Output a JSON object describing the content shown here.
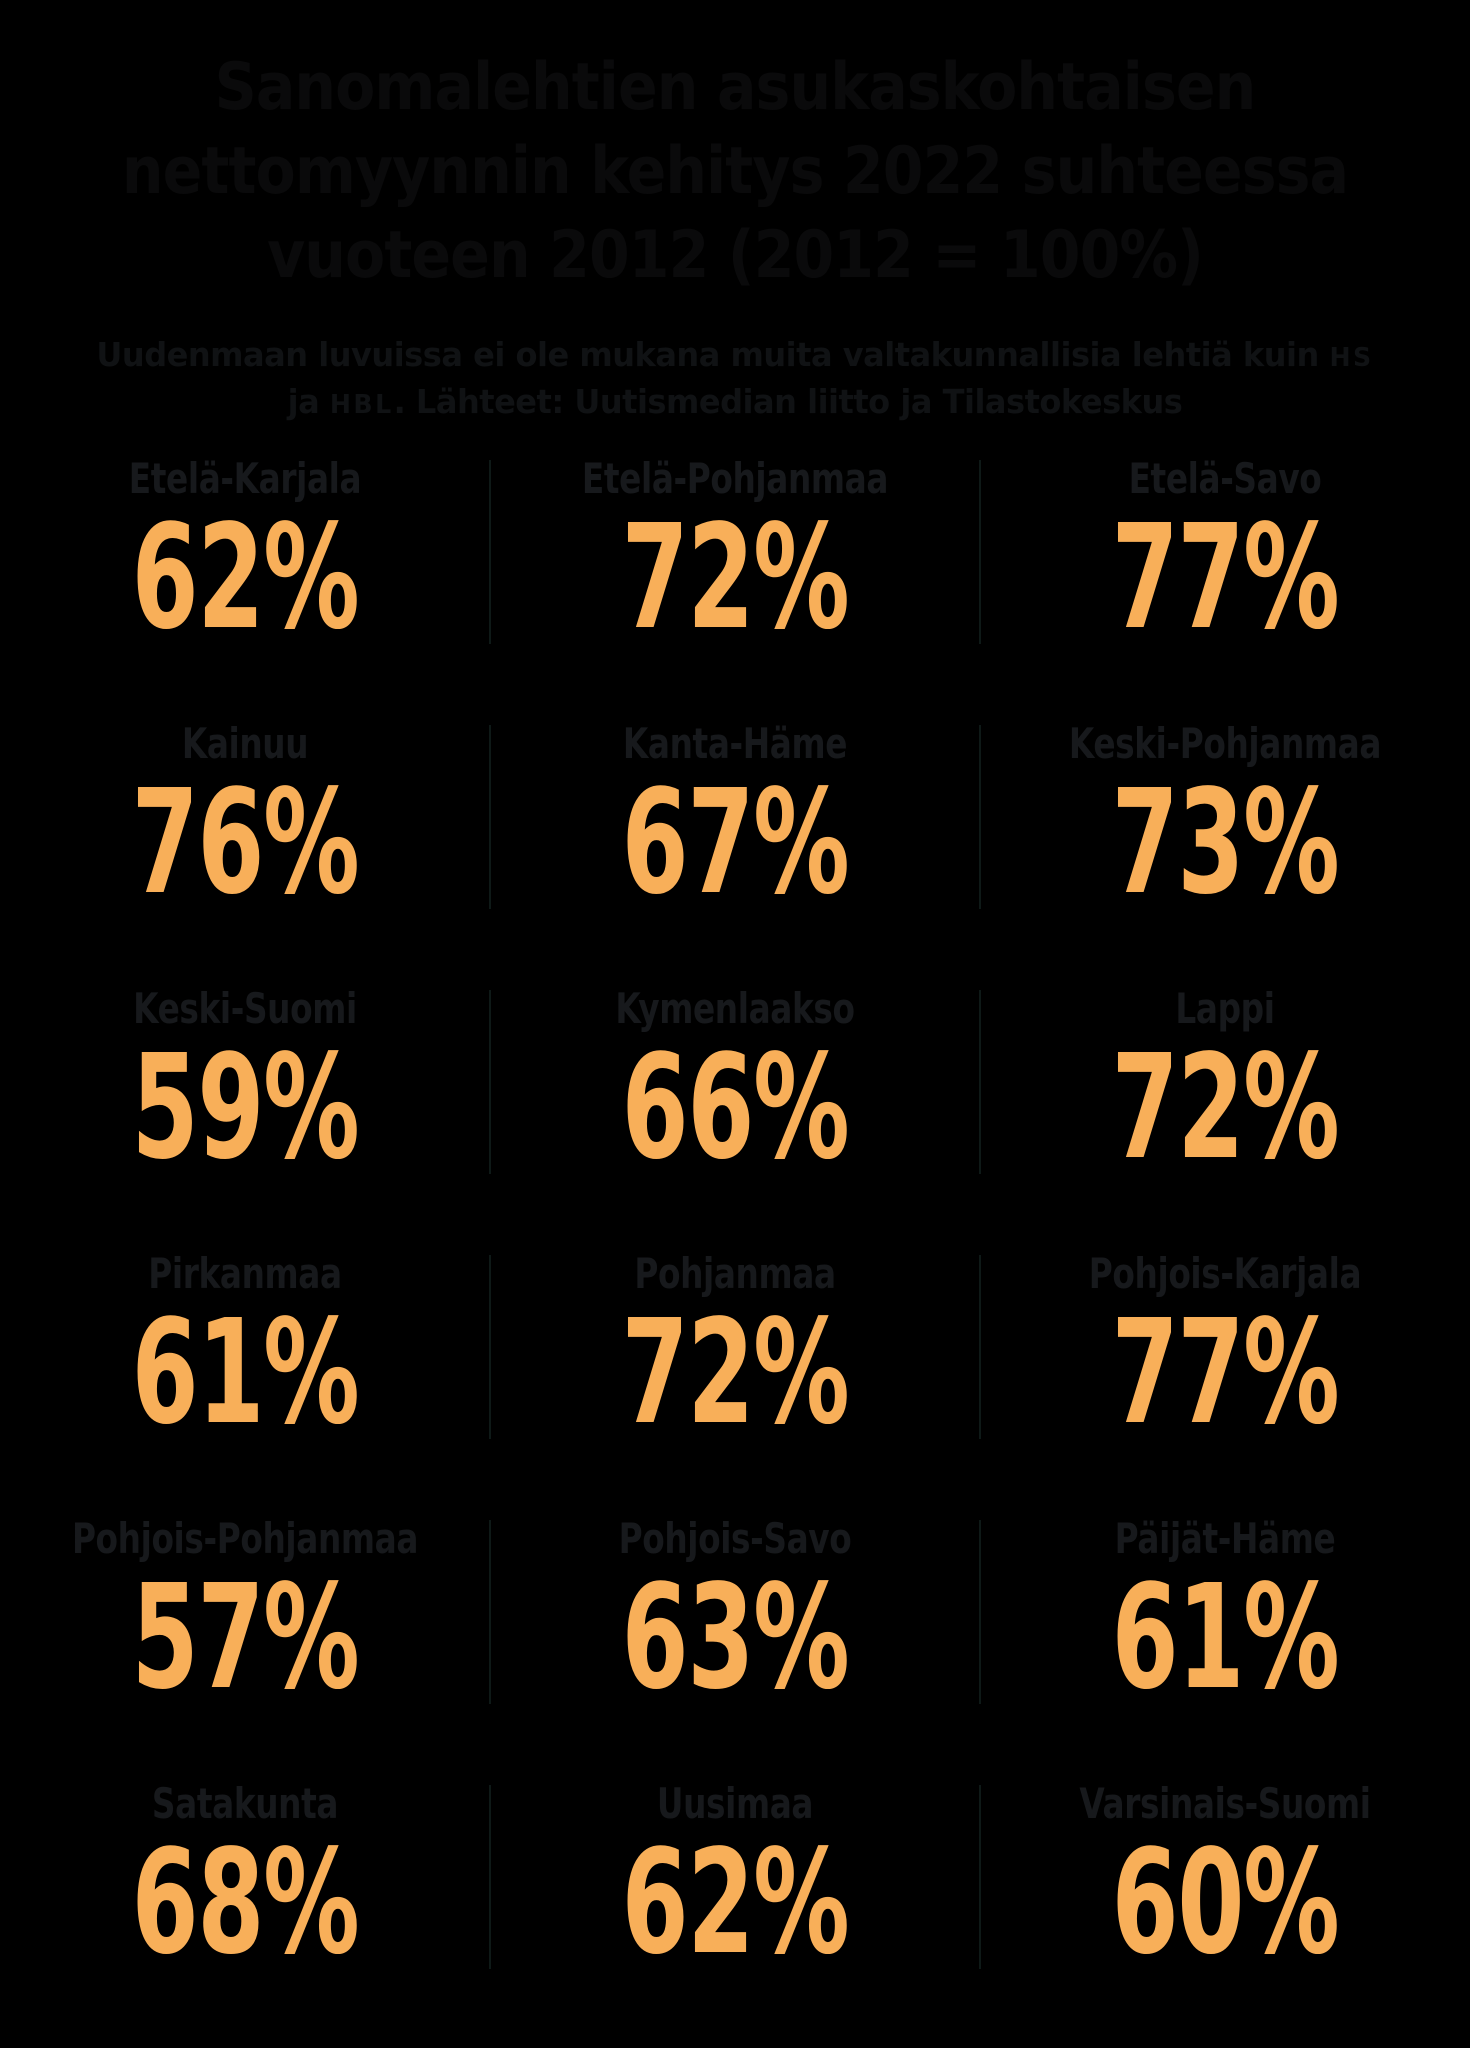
{
  "colors": {
    "background": "#000000",
    "title": "#0a0a0b",
    "subtitle": "#101214",
    "label": "#17191c",
    "accent_orange": "#f8af59",
    "divider": "#0e1917"
  },
  "title": {
    "lines": [
      "Sanomalehtien asukaskohtaisen",
      "nettomyynnin kehitys 2022 suhteessa",
      "vuoteen 2012 (2012 = 100%)"
    ]
  },
  "subtitle": {
    "line1_text": "Uudenmaan luvuissa ei ole mukana muita valtakunnallisia lehtiä kuin ",
    "line1_abbr": "HS",
    "line2_pre": "ja ",
    "line2_abbr": "HBL",
    "line2_post": ". Lähteet: Uutismedian liitto ja Tilastokeskus"
  },
  "chart_data": {
    "type": "table",
    "title": "Sanomalehtien asukaskohtaisen nettomyynnin kehitys 2022 suhteessa vuoteen 2012 (2012 = 100%)",
    "note": "Uudenmaan luvuissa ei ole mukana muita valtakunnallisia lehtiä kuin HS ja HBL. Lähteet: Uutismedian liitto ja Tilastokeskus",
    "unit": "%",
    "baseline": "2012 = 100%",
    "layout": {
      "columns": 3,
      "rows": 6,
      "legend": "none",
      "grid": "off"
    },
    "regions": [
      {
        "name": "Etelä-Karjala",
        "value": 62,
        "display": "62%"
      },
      {
        "name": "Etelä-Pohjanmaa",
        "value": 72,
        "display": "72%"
      },
      {
        "name": "Etelä-Savo",
        "value": 77,
        "display": "77%"
      },
      {
        "name": "Kainuu",
        "value": 76,
        "display": "76%"
      },
      {
        "name": "Kanta-Häme",
        "value": 67,
        "display": "67%"
      },
      {
        "name": "Keski-Pohjanmaa",
        "value": 73,
        "display": "73%"
      },
      {
        "name": "Keski-Suomi",
        "value": 59,
        "display": "59%"
      },
      {
        "name": "Kymenlaakso",
        "value": 66,
        "display": "66%"
      },
      {
        "name": "Lappi",
        "value": 72,
        "display": "72%"
      },
      {
        "name": "Pirkanmaa",
        "value": 61,
        "display": "61%"
      },
      {
        "name": "Pohjanmaa",
        "value": 72,
        "display": "72%"
      },
      {
        "name": "Pohjois-Karjala",
        "value": 77,
        "display": "77%"
      },
      {
        "name": "Pohjois-Pohjanmaa",
        "value": 57,
        "display": "57%"
      },
      {
        "name": "Pohjois-Savo",
        "value": 63,
        "display": "63%"
      },
      {
        "name": "Päijät-Häme",
        "value": 61,
        "display": "61%"
      },
      {
        "name": "Satakunta",
        "value": 68,
        "display": "68%"
      },
      {
        "name": "Uusimaa",
        "value": 62,
        "display": "62%"
      },
      {
        "name": "Varsinais-Suomi",
        "value": 60,
        "display": "60%"
      }
    ]
  }
}
